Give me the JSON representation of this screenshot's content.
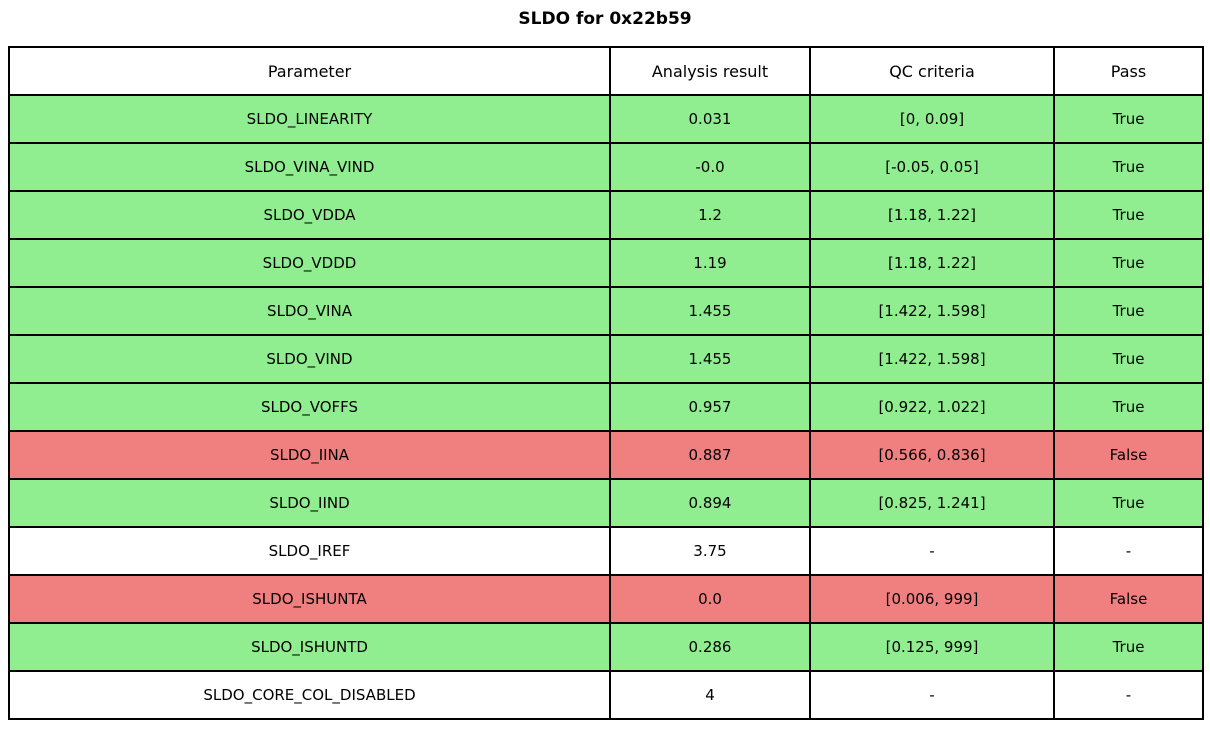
{
  "title": "SLDO for 0x22b59",
  "chart_data": {
    "type": "table",
    "title": "SLDO for 0x22b59",
    "columns": [
      "Parameter",
      "Analysis result",
      "QC criteria",
      "Pass"
    ],
    "rows": [
      {
        "parameter": "SLDO_LINEARITY",
        "analysis_result": "0.031",
        "qc_criteria": "[0, 0.09]",
        "pass": "True",
        "status": "pass"
      },
      {
        "parameter": "SLDO_VINA_VIND",
        "analysis_result": "-0.0",
        "qc_criteria": "[-0.05, 0.05]",
        "pass": "True",
        "status": "pass"
      },
      {
        "parameter": "SLDO_VDDA",
        "analysis_result": "1.2",
        "qc_criteria": "[1.18, 1.22]",
        "pass": "True",
        "status": "pass"
      },
      {
        "parameter": "SLDO_VDDD",
        "analysis_result": "1.19",
        "qc_criteria": "[1.18, 1.22]",
        "pass": "True",
        "status": "pass"
      },
      {
        "parameter": "SLDO_VINA",
        "analysis_result": "1.455",
        "qc_criteria": "[1.422, 1.598]",
        "pass": "True",
        "status": "pass"
      },
      {
        "parameter": "SLDO_VIND",
        "analysis_result": "1.455",
        "qc_criteria": "[1.422, 1.598]",
        "pass": "True",
        "status": "pass"
      },
      {
        "parameter": "SLDO_VOFFS",
        "analysis_result": "0.957",
        "qc_criteria": "[0.922, 1.022]",
        "pass": "True",
        "status": "pass"
      },
      {
        "parameter": "SLDO_IINA",
        "analysis_result": "0.887",
        "qc_criteria": "[0.566, 0.836]",
        "pass": "False",
        "status": "fail"
      },
      {
        "parameter": "SLDO_IIND",
        "analysis_result": "0.894",
        "qc_criteria": "[0.825, 1.241]",
        "pass": "True",
        "status": "pass"
      },
      {
        "parameter": "SLDO_IREF",
        "analysis_result": "3.75",
        "qc_criteria": "-",
        "pass": "-",
        "status": "none"
      },
      {
        "parameter": "SLDO_ISHUNTA",
        "analysis_result": "0.0",
        "qc_criteria": "[0.006, 999]",
        "pass": "False",
        "status": "fail"
      },
      {
        "parameter": "SLDO_ISHUNTD",
        "analysis_result": "0.286",
        "qc_criteria": "[0.125, 999]",
        "pass": "True",
        "status": "pass"
      },
      {
        "parameter": "SLDO_CORE_COL_DISABLED",
        "analysis_result": "4",
        "qc_criteria": "-",
        "pass": "-",
        "status": "none"
      }
    ]
  },
  "colors": {
    "pass_row_bg": "#90ee90",
    "fail_row_bg": "#f08080",
    "neutral_row_bg": "#ffffff",
    "border": "#000000",
    "text": "#000000"
  }
}
